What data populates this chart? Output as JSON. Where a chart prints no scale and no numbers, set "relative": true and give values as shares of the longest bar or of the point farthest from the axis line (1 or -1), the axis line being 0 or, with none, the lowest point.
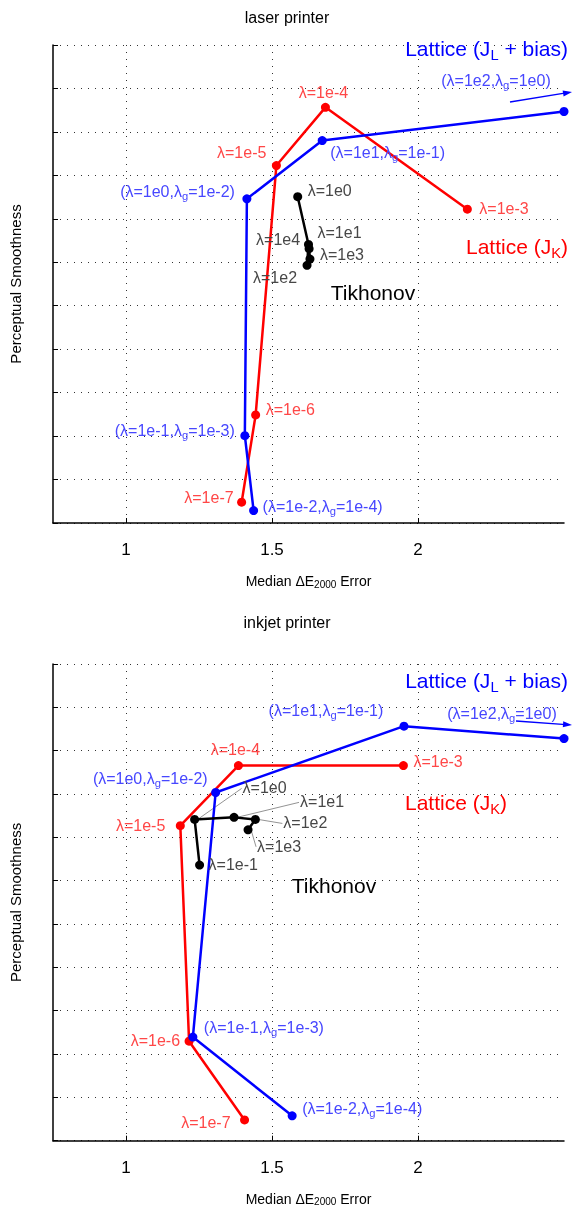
{
  "chart_data": [
    {
      "type": "line",
      "title": "laser printer",
      "xlabel": "Median ΔE$_{2000}$ Error",
      "ylabel": "Perceptual Smoothness",
      "relative": true,
      "xlim": [
        0.75,
        2.5
      ],
      "xticks": [
        1,
        1.5,
        2
      ],
      "grid": true,
      "tick_labels": "x",
      "marker": "circle",
      "line_style": "solid",
      "series": [
        {
          "name": "Lattice (J$_{K}$)",
          "color": "#ff0000",
          "x": [
            1.396,
            1.444,
            1.515,
            1.683,
            2.169
          ],
          "values": [
            0.05,
            0.26,
            0.86,
            1.0,
            0.755
          ]
        },
        {
          "name": "Lattice (J$_{L}$ + bias)",
          "color": "#0000ff",
          "x": [
            1.437,
            1.407,
            1.414,
            1.672,
            2.5
          ],
          "values": [
            0.03,
            0.21,
            0.78,
            0.92,
            0.99
          ]
        },
        {
          "name": "Tikhonov",
          "color": "#000000",
          "x": [
            1.588,
            1.625,
            1.62,
            1.63,
            1.627
          ],
          "values": [
            0.785,
            0.67,
            0.62,
            0.635,
            0.66
          ]
        }
      ],
      "annotations": [
        {
          "text": "λ=1e-7",
          "x": 1.396,
          "y": 0.05
        },
        {
          "text": "λ=1e-6",
          "x": 1.444,
          "y": 0.26
        },
        {
          "text": "λ=1e-5",
          "x": 1.515,
          "y": 0.86
        },
        {
          "text": "λ=1e-4",
          "x": 1.683,
          "y": 1.0
        },
        {
          "text": "λ=1e-3",
          "x": 2.169,
          "y": 0.755
        },
        {
          "text": "(λ=1e-2,λ$_{g}$=1e-4)",
          "x": 1.437,
          "y": 0.03
        },
        {
          "text": "(λ=1e-1,λ$_{g}$=1e-3)",
          "x": 1.407,
          "y": 0.21
        },
        {
          "text": "(λ=1e0,λ$_{g}$=1e-2)",
          "x": 1.414,
          "y": 0.78
        },
        {
          "text": "(λ=1e1,λ$_{g}$=1e-1)",
          "x": 1.672,
          "y": 0.92
        },
        {
          "text": "λ=1e0",
          "x": 1.588,
          "y": 0.785
        },
        {
          "text": "λ=1e1",
          "x": 1.625,
          "y": 0.67
        },
        {
          "text": "λ=1e2",
          "x": 1.62,
          "y": 0.62
        },
        {
          "text": "λ=1e3",
          "x": 1.63,
          "y": 0.635
        },
        {
          "text": "λ=1e4",
          "x": 1.627,
          "y": 0.66
        },
        "(λ=1e2,λ$_{g}$=1e0)"
      ]
    },
    {
      "type": "line",
      "title": "inkjet printer",
      "xlabel": "Median ΔE$_{2000}$ Error",
      "ylabel": "Perceptual Smoothness",
      "relative": true,
      "xlim": [
        0.75,
        2.5
      ],
      "xticks": [
        1,
        1.5,
        2
      ],
      "grid": true,
      "tick_labels": "x",
      "marker": "circle",
      "line_style": "solid",
      "series": [
        {
          "name": "Lattice (J$_{K}$)",
          "color": "#ff0000",
          "x": [
            1.406,
            1.216,
            1.186,
            1.385,
            1.95
          ],
          "values": [
            0.05,
            0.24,
            0.76,
            0.905,
            0.905
          ]
        },
        {
          "name": "Lattice (J$_{L}$ + bias)",
          "color": "#0000ff",
          "x": [
            1.569,
            1.229,
            1.307,
            1.952,
            2.5
          ],
          "values": [
            0.06,
            0.25,
            0.84,
            1.0,
            0.97
          ]
        },
        {
          "name": "Tikhonov",
          "color": "#000000",
          "x": [
            1.252,
            1.235,
            1.37,
            1.443,
            1.418
          ],
          "values": [
            0.665,
            0.775,
            0.78,
            0.775,
            0.75
          ]
        }
      ],
      "annotations": [
        {
          "text": "λ=1e-7",
          "x": 1.406,
          "y": 0.05
        },
        {
          "text": "λ=1e-6",
          "x": 1.216,
          "y": 0.24
        },
        {
          "text": "λ=1e-5",
          "x": 1.186,
          "y": 0.76
        },
        {
          "text": "λ=1e-4",
          "x": 1.385,
          "y": 0.905
        },
        {
          "text": "λ=1e-3",
          "x": 1.95,
          "y": 0.905
        },
        {
          "text": "(λ=1e-2,λ$_{g}$=1e-4)",
          "x": 1.569,
          "y": 0.06
        },
        {
          "text": "(λ=1e-1,λ$_{g}$=1e-3)",
          "x": 1.229,
          "y": 0.25
        },
        {
          "text": "(λ=1e0,λ$_{g}$=1e-2)",
          "x": 1.307,
          "y": 0.84
        },
        {
          "text": "(λ=1e1,λ$_{g}$=1e-1)",
          "x": 1.952,
          "y": 1.0
        },
        {
          "text": "λ=1e0",
          "x": 1.235,
          "y": 0.775
        },
        {
          "text": "λ=1e1",
          "x": 1.37,
          "y": 0.78
        },
        {
          "text": "λ=1e2",
          "x": 1.443,
          "y": 0.775
        },
        {
          "text": "λ=1e3",
          "x": 1.418,
          "y": 0.75
        },
        {
          "text": "λ=1e-1",
          "x": 1.252,
          "y": 0.665
        },
        "(λ=1e2,λ$_{g}$=1e0)"
      ]
    }
  ]
}
